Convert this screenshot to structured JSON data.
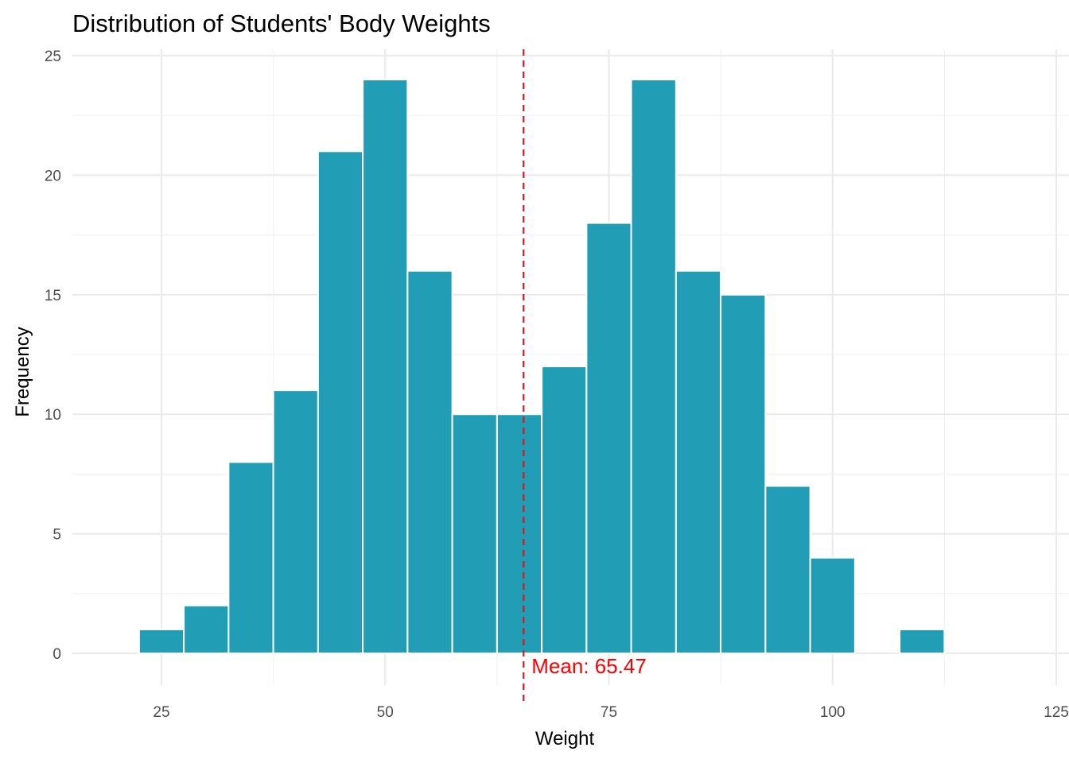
{
  "chart_data": {
    "type": "bar",
    "subtype": "histogram",
    "title": "Distribution of Students' Body Weights",
    "xlabel": "Weight",
    "ylabel": "Frequency",
    "bin_width": 5,
    "bin_centers": [
      25,
      30,
      35,
      40,
      45,
      50,
      55,
      60,
      65,
      70,
      75,
      80,
      85,
      90,
      95,
      100,
      105,
      110
    ],
    "values": [
      1,
      2,
      8,
      11,
      21,
      24,
      16,
      10,
      10,
      12,
      18,
      24,
      16,
      15,
      7,
      4,
      0,
      1
    ],
    "xlim": [
      15,
      125
    ],
    "ylim": [
      -1.2,
      25.3
    ],
    "x_ticks": [
      25,
      50,
      75,
      100,
      125
    ],
    "y_ticks": [
      0,
      5,
      10,
      15,
      20,
      25
    ],
    "grid": true,
    "mean": 65.47,
    "mean_label": "Mean: 65.47",
    "colors": {
      "bar": "#219EB5",
      "bar_border": "#FFFFFF",
      "mean_line": "#E0141E",
      "grid": "#EBEBEB"
    }
  }
}
